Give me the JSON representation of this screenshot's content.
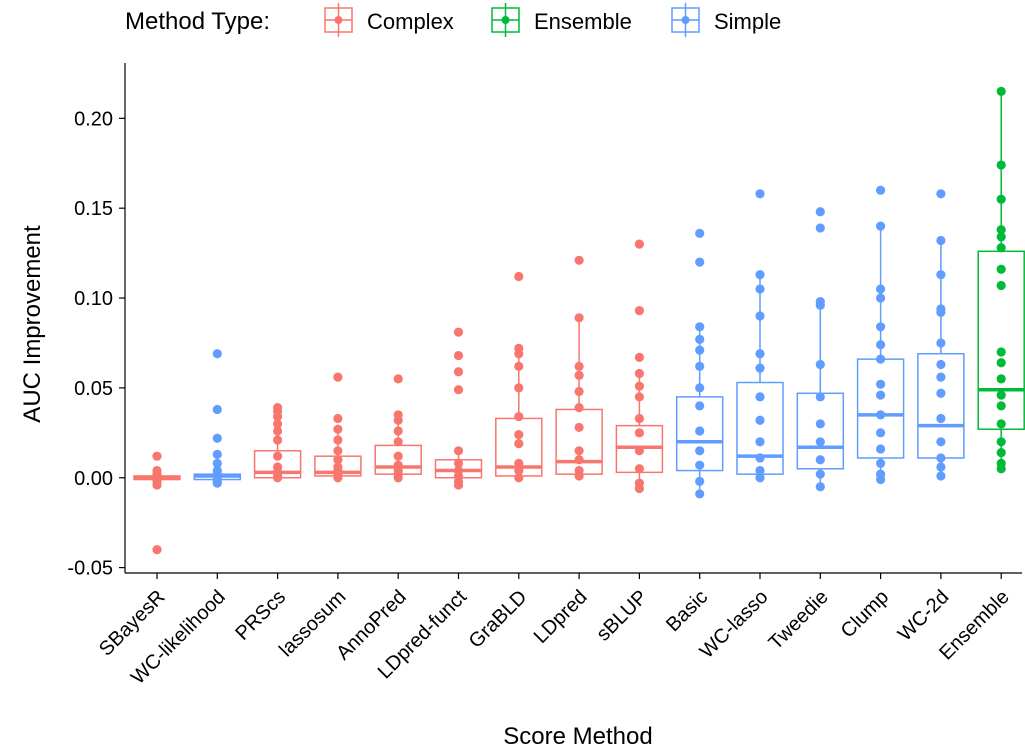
{
  "chart_data": {
    "type": "boxplot",
    "xlabel": "Score Method",
    "ylabel": "AUC Improvement",
    "ylim": [
      -0.053,
      0.228
    ],
    "yticks": [
      -0.05,
      0.0,
      0.05,
      0.1,
      0.15,
      0.2
    ],
    "ytick_labels": [
      "-0.05",
      "0.00",
      "0.05",
      "0.10",
      "0.15",
      "0.20"
    ],
    "legend": {
      "title": "Method Type:",
      "position": "top",
      "items": [
        {
          "label": "Complex",
          "color": "#F8766D"
        },
        {
          "label": "Ensemble",
          "color": "#00BA38"
        },
        {
          "label": "Simple",
          "color": "#619CFF"
        }
      ]
    },
    "categories": [
      {
        "name": "SBayesR",
        "type": "Complex",
        "box": {
          "q1": -0.001,
          "median": 0.0,
          "q3": 0.001,
          "low": -0.002,
          "high": 0.002
        },
        "points": [
          0.012,
          0.004,
          0.002,
          0.001,
          0.0,
          0.0,
          -0.001,
          -0.002,
          -0.004,
          -0.04
        ]
      },
      {
        "name": "WC-likelihood",
        "type": "Simple",
        "box": {
          "q1": -0.001,
          "median": 0.001,
          "q3": 0.002,
          "low": -0.003,
          "high": 0.004
        },
        "points": [
          0.069,
          0.038,
          0.022,
          0.013,
          0.008,
          0.004,
          0.002,
          0.0,
          -0.002,
          -0.003
        ]
      },
      {
        "name": "PRScs",
        "type": "Complex",
        "box": {
          "q1": 0.0,
          "median": 0.003,
          "q3": 0.015,
          "low": 0.0,
          "high": 0.039
        },
        "points": [
          0.039,
          0.037,
          0.034,
          0.03,
          0.026,
          0.021,
          0.012,
          0.006,
          0.003,
          0.001,
          0.0
        ]
      },
      {
        "name": "lassosum",
        "type": "Complex",
        "box": {
          "q1": 0.001,
          "median": 0.003,
          "q3": 0.012,
          "low": 0.0,
          "high": 0.027
        },
        "points": [
          0.056,
          0.033,
          0.027,
          0.021,
          0.015,
          0.01,
          0.006,
          0.004,
          0.002,
          0.0
        ]
      },
      {
        "name": "AnnoPred",
        "type": "Complex",
        "box": {
          "q1": 0.002,
          "median": 0.006,
          "q3": 0.018,
          "low": 0.0,
          "high": 0.035
        },
        "points": [
          0.055,
          0.035,
          0.032,
          0.026,
          0.02,
          0.012,
          0.007,
          0.004,
          0.002,
          0.0
        ]
      },
      {
        "name": "LDpred-funct",
        "type": "Complex",
        "box": {
          "q1": 0.0,
          "median": 0.004,
          "q3": 0.01,
          "low": 0.0,
          "high": 0.015
        },
        "points": [
          0.081,
          0.068,
          0.059,
          0.049,
          0.015,
          0.008,
          0.004,
          0.001,
          -0.002,
          -0.004
        ]
      },
      {
        "name": "GraBLD",
        "type": "Complex",
        "box": {
          "q1": 0.001,
          "median": 0.006,
          "q3": 0.033,
          "low": 0.0,
          "high": 0.072
        },
        "points": [
          0.112,
          0.072,
          0.069,
          0.062,
          0.05,
          0.034,
          0.024,
          0.019,
          0.008,
          0.004,
          0.0
        ]
      },
      {
        "name": "LDpred",
        "type": "Complex",
        "box": {
          "q1": 0.002,
          "median": 0.009,
          "q3": 0.038,
          "low": 0.0,
          "high": 0.089
        },
        "points": [
          0.121,
          0.089,
          0.062,
          0.057,
          0.048,
          0.039,
          0.028,
          0.015,
          0.01,
          0.004,
          0.001
        ]
      },
      {
        "name": "sBLUP",
        "type": "Complex",
        "box": {
          "q1": 0.003,
          "median": 0.017,
          "q3": 0.029,
          "low": -0.006,
          "high": 0.058
        },
        "points": [
          0.13,
          0.093,
          0.067,
          0.058,
          0.051,
          0.045,
          0.033,
          0.025,
          0.015,
          0.005,
          -0.003,
          -0.006
        ]
      },
      {
        "name": "Basic",
        "type": "Simple",
        "box": {
          "q1": 0.004,
          "median": 0.02,
          "q3": 0.045,
          "low": -0.009,
          "high": 0.084
        },
        "points": [
          0.136,
          0.12,
          0.084,
          0.077,
          0.071,
          0.062,
          0.05,
          0.04,
          0.026,
          0.015,
          0.007,
          -0.002,
          -0.009
        ]
      },
      {
        "name": "WC-lasso",
        "type": "Simple",
        "box": {
          "q1": 0.002,
          "median": 0.012,
          "q3": 0.053,
          "low": -0.001,
          "high": 0.113
        },
        "points": [
          0.158,
          0.113,
          0.105,
          0.09,
          0.069,
          0.061,
          0.045,
          0.032,
          0.02,
          0.011,
          0.004,
          0.0
        ]
      },
      {
        "name": "Tweedie",
        "type": "Simple",
        "box": {
          "q1": 0.005,
          "median": 0.017,
          "q3": 0.047,
          "low": -0.005,
          "high": 0.098
        },
        "points": [
          0.148,
          0.139,
          0.098,
          0.096,
          0.063,
          0.045,
          0.03,
          0.02,
          0.01,
          0.002,
          -0.005
        ]
      },
      {
        "name": "Clump",
        "type": "Simple",
        "box": {
          "q1": 0.011,
          "median": 0.035,
          "q3": 0.066,
          "low": -0.001,
          "high": 0.14
        },
        "points": [
          0.16,
          0.14,
          0.105,
          0.1,
          0.084,
          0.074,
          0.066,
          0.052,
          0.046,
          0.035,
          0.025,
          0.016,
          0.008,
          0.002,
          -0.001
        ]
      },
      {
        "name": "WC-2d",
        "type": "Simple",
        "box": {
          "q1": 0.011,
          "median": 0.029,
          "q3": 0.069,
          "low": 0.001,
          "high": 0.132
        },
        "points": [
          0.158,
          0.132,
          0.113,
          0.094,
          0.092,
          0.075,
          0.063,
          0.056,
          0.047,
          0.033,
          0.02,
          0.011,
          0.006,
          0.001
        ]
      },
      {
        "name": "Ensemble",
        "type": "Ensemble",
        "box": {
          "q1": 0.027,
          "median": 0.049,
          "q3": 0.126,
          "low": 0.005,
          "high": 0.215
        },
        "points": [
          0.215,
          0.174,
          0.155,
          0.138,
          0.134,
          0.128,
          0.116,
          0.107,
          0.07,
          0.064,
          0.055,
          0.046,
          0.04,
          0.03,
          0.02,
          0.014,
          0.008,
          0.005
        ]
      }
    ]
  }
}
